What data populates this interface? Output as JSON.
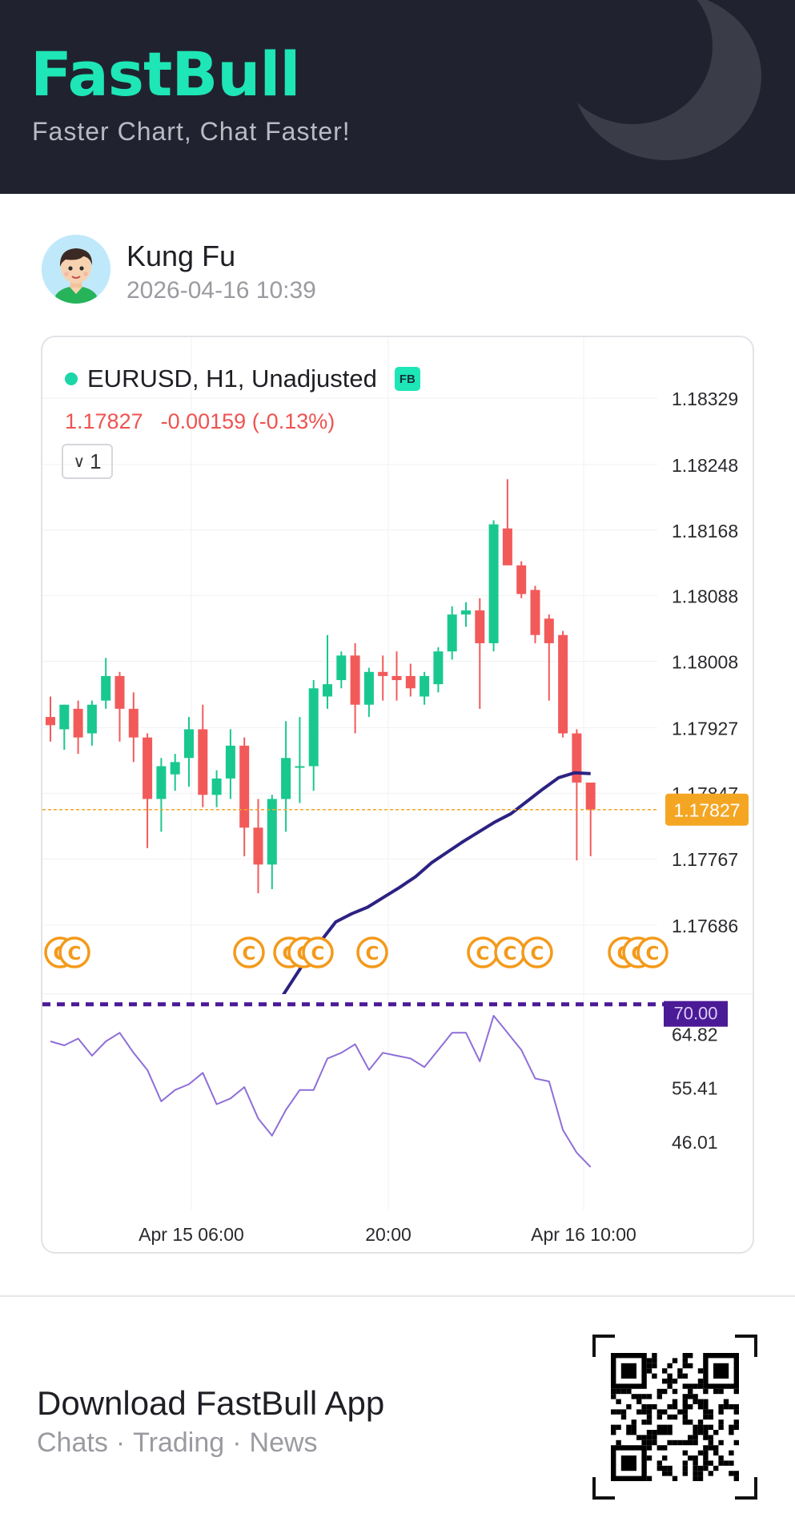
{
  "header": {
    "brand": "FastBull",
    "tagline": "Faster Chart, Chat Faster!"
  },
  "user": {
    "name": "Kung Fu",
    "time": "2026-04-16 10:39",
    "avatar_icon": "user-avatar"
  },
  "card": {
    "symbol": "EURUSD, H1, Unadjusted",
    "badge": "FB",
    "price": "1.17827",
    "change": "-0.00159 (-0.13%)",
    "collapse_count": "1",
    "collapse_icon": "chevron-down-icon"
  },
  "footer": {
    "title": "Download FastBull App",
    "subs": [
      "Chats",
      "Trading",
      "News"
    ],
    "separator": "·",
    "qr_icon": "qr-code-icon"
  },
  "colors": {
    "brand": "#1ee6b6",
    "up": "#19c88f",
    "down": "#f25a5a",
    "ma": "#2b2282",
    "rsi": "#8e6ed8",
    "price_tag": "#f4a623",
    "rsi_tag": "#4b1a97"
  },
  "chart_data": {
    "type": "candlestick",
    "symbol": "EURUSD",
    "timeframe": "H1",
    "x_tick_labels": [
      "Apr 15 06:00",
      "20:00",
      "Apr 16 10:00"
    ],
    "y_tick_labels": [
      "1.18329",
      "1.18248",
      "1.18168",
      "1.18088",
      "1.18008",
      "1.17927",
      "1.17847",
      "1.17767",
      "1.17686"
    ],
    "last_price": 1.17827,
    "last_price_label": "1.17827",
    "candles": [
      {
        "o": 1.1794,
        "h": 1.17965,
        "l": 1.1791,
        "c": 1.1793
      },
      {
        "o": 1.17925,
        "h": 1.17955,
        "l": 1.179,
        "c": 1.17955
      },
      {
        "o": 1.1795,
        "h": 1.1796,
        "l": 1.17895,
        "c": 1.17915
      },
      {
        "o": 1.1792,
        "h": 1.1796,
        "l": 1.17905,
        "c": 1.17955
      },
      {
        "o": 1.1796,
        "h": 1.18012,
        "l": 1.1795,
        "c": 1.1799
      },
      {
        "o": 1.1799,
        "h": 1.17995,
        "l": 1.1791,
        "c": 1.1795
      },
      {
        "o": 1.1795,
        "h": 1.1797,
        "l": 1.17885,
        "c": 1.17915
      },
      {
        "o": 1.17915,
        "h": 1.1792,
        "l": 1.1778,
        "c": 1.1784
      },
      {
        "o": 1.1784,
        "h": 1.1789,
        "l": 1.178,
        "c": 1.1788
      },
      {
        "o": 1.1787,
        "h": 1.17895,
        "l": 1.1785,
        "c": 1.17885
      },
      {
        "o": 1.1789,
        "h": 1.1794,
        "l": 1.17855,
        "c": 1.17925
      },
      {
        "o": 1.17925,
        "h": 1.17955,
        "l": 1.1783,
        "c": 1.17845
      },
      {
        "o": 1.17845,
        "h": 1.17875,
        "l": 1.1783,
        "c": 1.17865
      },
      {
        "o": 1.17865,
        "h": 1.17925,
        "l": 1.1784,
        "c": 1.17905
      },
      {
        "o": 1.17905,
        "h": 1.17915,
        "l": 1.1777,
        "c": 1.17805
      },
      {
        "o": 1.17805,
        "h": 1.1784,
        "l": 1.17725,
        "c": 1.1776
      },
      {
        "o": 1.1776,
        "h": 1.17845,
        "l": 1.1773,
        "c": 1.1784
      },
      {
        "o": 1.1784,
        "h": 1.17935,
        "l": 1.178,
        "c": 1.1789
      },
      {
        "o": 1.1788,
        "h": 1.1794,
        "l": 1.17835,
        "c": 1.1788
      },
      {
        "o": 1.1788,
        "h": 1.17985,
        "l": 1.1785,
        "c": 1.17975
      },
      {
        "o": 1.17965,
        "h": 1.1804,
        "l": 1.1795,
        "c": 1.1798
      },
      {
        "o": 1.17985,
        "h": 1.1802,
        "l": 1.17975,
        "c": 1.18015
      },
      {
        "o": 1.18015,
        "h": 1.1803,
        "l": 1.1792,
        "c": 1.17955
      },
      {
        "o": 1.17955,
        "h": 1.18,
        "l": 1.1794,
        "c": 1.17995
      },
      {
        "o": 1.17995,
        "h": 1.18015,
        "l": 1.1796,
        "c": 1.1799
      },
      {
        "o": 1.1799,
        "h": 1.1802,
        "l": 1.1796,
        "c": 1.17985
      },
      {
        "o": 1.1799,
        "h": 1.18005,
        "l": 1.17965,
        "c": 1.17975
      },
      {
        "o": 1.17965,
        "h": 1.17995,
        "l": 1.17955,
        "c": 1.1799
      },
      {
        "o": 1.1798,
        "h": 1.18025,
        "l": 1.1797,
        "c": 1.1802
      },
      {
        "o": 1.1802,
        "h": 1.18075,
        "l": 1.1801,
        "c": 1.18065
      },
      {
        "o": 1.18065,
        "h": 1.1808,
        "l": 1.1805,
        "c": 1.1807
      },
      {
        "o": 1.1807,
        "h": 1.18085,
        "l": 1.1795,
        "c": 1.1803
      },
      {
        "o": 1.1803,
        "h": 1.1818,
        "l": 1.1802,
        "c": 1.18175
      },
      {
        "o": 1.1817,
        "h": 1.1823,
        "l": 1.1813,
        "c": 1.18125
      },
      {
        "o": 1.18125,
        "h": 1.1813,
        "l": 1.18085,
        "c": 1.1809
      },
      {
        "o": 1.18095,
        "h": 1.181,
        "l": 1.1803,
        "c": 1.1804
      },
      {
        "o": 1.1806,
        "h": 1.18065,
        "l": 1.1796,
        "c": 1.1803
      },
      {
        "o": 1.1804,
        "h": 1.18045,
        "l": 1.17915,
        "c": 1.1792
      },
      {
        "o": 1.1792,
        "h": 1.17925,
        "l": 1.17765,
        "c": 1.1786
      },
      {
        "o": 1.1786,
        "h": 1.1786,
        "l": 1.1777,
        "c": 1.17827
      }
    ],
    "ma_line": [
      1.1758,
      1.1761,
      1.1764,
      1.17665,
      1.1769,
      1.177,
      1.17708,
      1.1772,
      1.17732,
      1.17745,
      1.17762,
      1.17775,
      1.17788,
      1.178,
      1.17812,
      1.17822,
      1.17837,
      1.17852,
      1.17866,
      1.17872,
      1.17871
    ],
    "event_markers": [
      "C",
      "C",
      "C",
      "C",
      "C",
      "C",
      "C",
      "C",
      "C",
      "C",
      "C",
      "C",
      "C"
    ],
    "rsi": {
      "level": "70.00",
      "ticks": [
        "64.82",
        "55.41",
        "46.01"
      ],
      "values": [
        63.5,
        62.8,
        64.0,
        61.0,
        63.5,
        65.0,
        61.5,
        58.5,
        53.0,
        55.0,
        56.0,
        58.0,
        52.5,
        53.5,
        55.5,
        50.0,
        47.0,
        51.5,
        55.0,
        55.0,
        60.5,
        61.5,
        63.0,
        58.5,
        61.5,
        61.0,
        60.5,
        59.0,
        62.0,
        65.0,
        65.0,
        60.0,
        68.0,
        65.0,
        62.0,
        57.0,
        56.5,
        48.0,
        44.0,
        41.5
      ]
    }
  }
}
